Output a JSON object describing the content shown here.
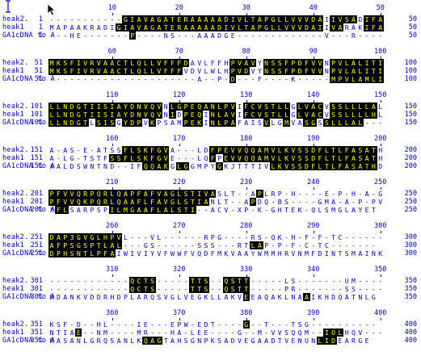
{
  "alignment": {
    "sequences": [
      "heak2.",
      "heak1",
      "GA1cDNA to A"
    ],
    "blocks": [
      {
        "ticks": [
          "10",
          "20",
          "30",
          "40",
          "50"
        ],
        "rows": [
          {
            "name": "heak2.",
            "start": "1",
            "end": "50",
            "seq": "-----------GIAVAGATERAAAAADIVLTAPGLLVVVDAIIVSADIFAA",
            "hl": "00000000000111111111111111111111111111111011110111"
          },
          {
            "name": "heak1",
            "start": "1",
            "end": "50",
            "seq": "MAPAAKRADIGIAVAGATERAAAAADIVLTAPGLLVVVDAIIVARAKIFAR",
            "hl": "00000000001111111111111111111111111111111011000111"
          },
          {
            "name": "GA1cDNA to A",
            "start": "1",
            "end": "50",
            "seq": "---HE-------P----NS---AAADGE-------------V---R----",
            "hl": "00000000000010000000000000000000000000000000000000"
          }
        ]
      },
      {
        "ticks": [
          "60",
          "70",
          "80",
          "90",
          "100"
        ],
        "rows": [
          {
            "name": "heak2.",
            "start": "51",
            "end": "100",
            "seq": "MKSFIVRVAACTLQLLVFFFDAVLFFHPVAVYNSSFPDFVVNPVLALITIT",
            "hl": "11111111111111111111100000011110111111111011111111"
          },
          {
            "name": "heak1",
            "start": "51",
            "end": "100",
            "seq": "MKSFIVRVAACTLQLLVFFFVDVLWLHPVDVYNSSFPDFVVNPVLALITIT",
            "hl": "11111111111111111111000000011100111111111011111111"
          },
          {
            "name": "GA1cDNA to A",
            "start": "51",
            "end": "100",
            "seq": "----------------------A--P-D---F----K-----MPVLAMLILT",
            "hl": "00000000000000000000000000010000000000000011111111"
          }
        ]
      },
      {
        "ticks": [
          "110",
          "120",
          "130",
          "140",
          "150"
        ],
        "rows": [
          {
            "name": "heak2.",
            "start": "101",
            "end": "150",
            "seq": "LLNDGTIISIAYDNVQVNLGPEQANLPVIFCVSTLLGLVACVSSLLLLAL",
            "hl": "11111111111111111011111111110111111101111011111110"
          },
          {
            "name": "heak1",
            "start": "101",
            "end": "150",
            "seq": "LLNDGTIISIAYDNVQVNIDPEQINLAVIFCVSTLLGLVACVSSLLLLHL",
            "hl": "11111111111111111010111011110111111101111011111110"
          },
          {
            "name": "GA1cDNA to A",
            "start": "101",
            "end": "150",
            "seq": "LLNDGTLSISGYDPVKPSAMPEKINLPAFAISVLGMVASGSSLLLAL---",
            "hl": "11111101110111010000111011110000100100110111111000"
          }
        ]
      },
      {
        "ticks": [
          "160",
          "170",
          "180",
          "190",
          "200"
        ],
        "rows": [
          {
            "name": "heak2.",
            "start": "151",
            "end": "200",
            "seq": "A-AS-E-ATSSFLSKFGVA---LDFPEVVQQAMVLKVSSDFLTLFASATH-S",
            "hl": "00000000000111111100000011111111111111111111111110"
          },
          {
            "name": "heak1",
            "start": "151",
            "end": "200",
            "seq": "A-LG-TSTFSSFLSKFGVE---LQFPEVVQQAMVLKVSSDFLTLFASATH-S",
            "hl": "00000000011111111100000010111111111111111111111110"
          },
          {
            "name": "GA1cDNA to A",
            "start": "151",
            "end": "200",
            "seq": "AALDSWNTND--IFQQAKGLGGMPYGKJTTTIVLKVSSDFLTLFASATHDG",
            "hl": "00000000000000111101100001000000011111111111111110"
          }
        ]
      },
      {
        "ticks": [
          "210",
          "220",
          "230",
          "240",
          "250"
        ],
        "rows": [
          {
            "name": "heak2.",
            "start": "201",
            "end": "250",
            "seq": "PFVVQRPQRLQAPFAFVAGLSTIVASLT--APLRP-H----E-P-H-A-GH",
            "hl": "11111111111111111111111110000001000000000000000000"
          },
          {
            "name": "heak1",
            "start": "201",
            "end": "250",
            "seq": "PFVVQKPQRLQAAFLFAVGLSTIANLT--APDQ-BS----GMA-A-P-PV",
            "hl": "11111111111111111111111100000010000000000000000000"
          },
          {
            "name": "GA1cDNA to A",
            "start": "201",
            "end": "250",
            "seq": "XFLSARPSPILMGAAFLALSTI--ACV-XP-K-GHTEK-QLSMGLAYET",
            "hl": "01100000011111111111111000000000000000000000000000"
          }
        ]
      },
      {
        "ticks": [
          "260",
          "270",
          "280",
          "290",
          "300"
        ],
        "rows": [
          {
            "name": "heak2.",
            "start": "251",
            "end": "300",
            "seq": "DAP3GVGLHPVL---VL------RPG----RS-QK-H-F-F-TC-------",
            "hl": "11111111111000000000000000000000000000000000000000"
          },
          {
            "name": "heak1",
            "start": "251",
            "end": "300",
            "seq": "AFPSGSPTLAL---GS------SSS---RTLAP-P-F-C-TC-------",
            "hl": "11111111111100000000000000000011000000000000000000"
          },
          {
            "name": "GA1cDNA to A",
            "start": "251",
            "end": "300",
            "seq": "DPHSNTLPFAIWIVIYVFWWFVQDFMKVAAYWMMHRVNMFDINTSMAINK",
            "hl": "11111111110000000000000000000000000000000000000000"
          }
        ]
      },
      {
        "ticks": [
          "310",
          "320",
          "330",
          "340",
          "350"
        ],
        "rows": [
          {
            "name": "heak2.",
            "start": "301",
            "end": "350",
            "seq": "------------QCTS-----TTS--QSTT-----LS-------UM------",
            "hl": "00000000000011110000011100111100000000000000000000"
          },
          {
            "name": "heak1",
            "start": "301",
            "end": "350",
            "seq": "------------QCTS-----TTS--QSTT-----PR-------SS------",
            "hl": "00000000000011110000011100111100000000000000000000"
          },
          {
            "name": "GA1cDNA to A",
            "start": "301",
            "end": "350",
            "seq": "RDANKVDDRHDPLARQSVGLVEGKLLAKVEEAQAKLNAAIKHDQATNLG",
            "hl": "00000000000000000000000000000100000000100000000000"
          }
        ]
      },
      {
        "ticks": [
          "360",
          "370",
          "380",
          "390",
          "400"
        ],
        "rows": [
          {
            "name": "heak2.",
            "start": "351",
            "end": "400",
            "seq": "KSF-D--HL----IE---EPW-EDT----G--T---TSG----------",
            "hl": "00000000000000000000000000000100000000000000000000"
          },
          {
            "name": "heak1",
            "start": "351",
            "end": "400",
            "seq": "NTIAE--NM----MR---HA-LEE----G--M-VVSQQM--IOLHQV---",
            "hl": "00001000000000011000000000000100000000001111000000"
          },
          {
            "name": "GA1cDNA to A",
            "start": "351",
            "end": "400",
            "seq": "RASANLGRQSANLKQAGTAHSGNPKSADVEGAADTVENUNLIDEARGE",
            "hl": "00000000000000111000000000000000000000001110000000"
          }
        ]
      }
    ]
  }
}
